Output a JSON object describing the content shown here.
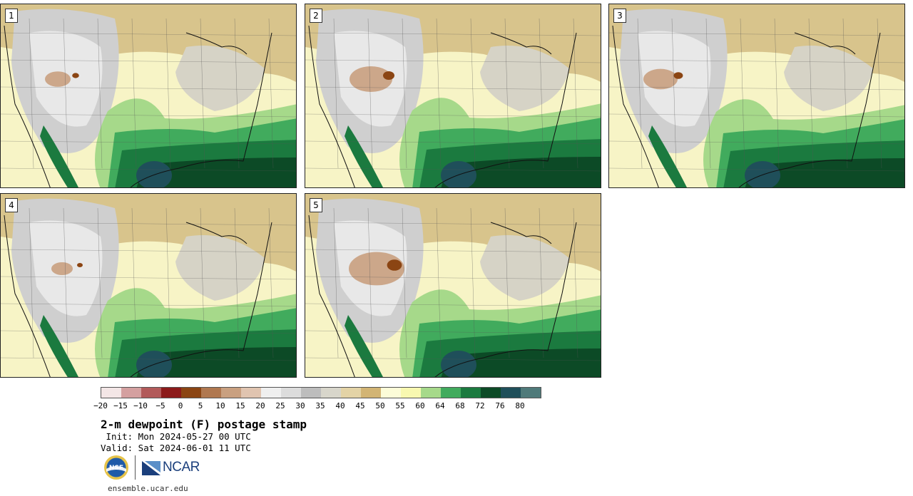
{
  "panels": [
    {
      "label": "1"
    },
    {
      "label": "2"
    },
    {
      "label": "3"
    },
    {
      "label": "4"
    },
    {
      "label": "5"
    }
  ],
  "colorbar": {
    "colors": [
      "#f3e6e6",
      "#d4a0a0",
      "#b25a5a",
      "#8c1a1a",
      "#8b4513",
      "#b07850",
      "#c9a080",
      "#e0c4b0",
      "#efefef",
      "#dcdcdc",
      "#bdbdbd",
      "#d8d6cb",
      "#e3d3a6",
      "#d2b474",
      "#fcfcd8",
      "#f8f8b0",
      "#a6d98a",
      "#41ab5d",
      "#1b7a3f",
      "#0c4a26",
      "#1f4f5a",
      "#4f7a7a"
    ],
    "ticks": [
      "−20",
      "−15",
      "−10",
      "−5",
      "0",
      "5",
      "10",
      "15",
      "20",
      "25",
      "30",
      "35",
      "40",
      "45",
      "50",
      "55",
      "60",
      "64",
      "68",
      "72",
      "76",
      "80"
    ]
  },
  "title": "2-m dewpoint (F) postage stamp",
  "init": " Init: Mon 2024-05-27 00 UTC",
  "valid": "Valid: Sat 2024-06-01 11 UTC",
  "logos": {
    "nsf": "NSF",
    "ncar": "NCAR"
  },
  "footer": "ensemble.ucar.edu"
}
